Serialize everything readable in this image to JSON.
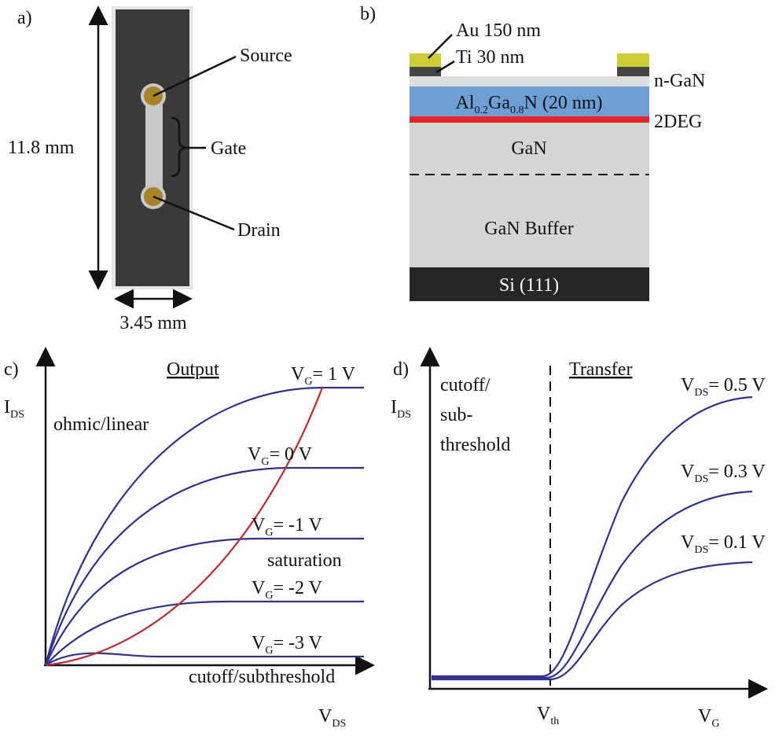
{
  "panel_a": {
    "label": "a)",
    "source": "Source",
    "gate": "Gate",
    "drain": "Drain",
    "height": "11.8 mm",
    "width": "3.45 mm"
  },
  "panel_b": {
    "label": "b)",
    "au": "Au 150 nm",
    "ti": "Ti 30 nm",
    "n_gan": "n-GaN",
    "algan": {
      "al": "Al",
      "al_sub": "0.2",
      "ga": "Ga",
      "ga_sub": "0.8",
      "rest": "N (20 nm)"
    },
    "twodeg": "2DEG",
    "gan": "GaN",
    "buffer": "GaN Buffer",
    "si": "Si (111)"
  },
  "panel_c": {
    "label": "c)",
    "title": "Output",
    "y_axis": {
      "main": "I",
      "sub": "DS"
    },
    "x_axis": {
      "main": "V",
      "sub": "DS"
    },
    "ohmic": "ohmic/linear",
    "saturation": "saturation",
    "cutoff": "cutoff/subthreshold",
    "curves": [
      {
        "main": "V",
        "sub": "G",
        "rest": "= 1 V"
      },
      {
        "main": "V",
        "sub": "G",
        "rest": "= 0 V"
      },
      {
        "main": "V",
        "sub": "G",
        "rest": "= -1 V"
      },
      {
        "main": "V",
        "sub": "G",
        "rest": "= -2 V"
      },
      {
        "main": "V",
        "sub": "G",
        "rest": "= -3 V"
      }
    ]
  },
  "panel_d": {
    "label": "d)",
    "title": "Transfer",
    "y_axis": {
      "main": "I",
      "sub": "DS"
    },
    "x_axis": {
      "main": "V",
      "sub": "G"
    },
    "threshold": {
      "main": "V",
      "sub": "th"
    },
    "cutoff": [
      "cutoff/",
      "sub-",
      "threshold"
    ],
    "curves": [
      {
        "main": "V",
        "sub": "DS",
        "rest": "= 0.5 V"
      },
      {
        "main": "V",
        "sub": "DS",
        "rest": "= 0.3 V"
      },
      {
        "main": "V",
        "sub": "DS",
        "rest": "= 0.1 V"
      }
    ]
  }
}
